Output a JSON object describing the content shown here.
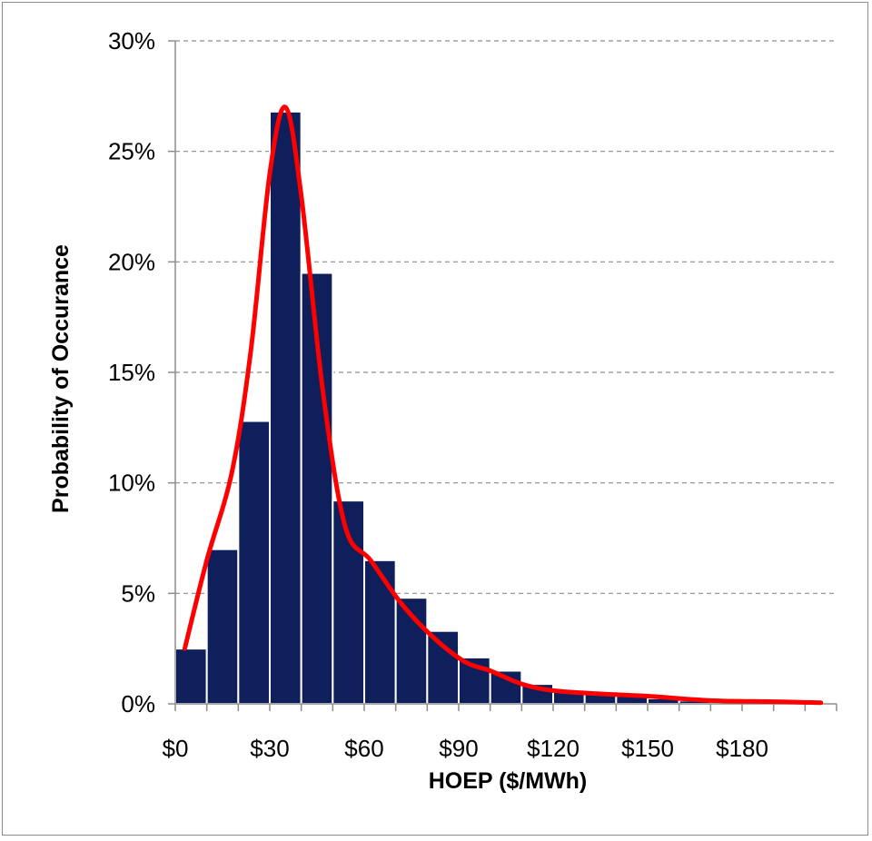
{
  "chart_data": {
    "type": "bar",
    "xlabel": "HOEP ($/MWh)",
    "ylabel": "Probability of Occurance",
    "ylim": [
      0,
      30
    ],
    "xlim": [
      0,
      210
    ],
    "grid": true,
    "bin_width": 10,
    "bins": [
      {
        "x": 5,
        "value": 2.5
      },
      {
        "x": 15,
        "value": 7.0
      },
      {
        "x": 25,
        "value": 12.8
      },
      {
        "x": 35,
        "value": 26.8
      },
      {
        "x": 45,
        "value": 19.5
      },
      {
        "x": 55,
        "value": 9.2
      },
      {
        "x": 65,
        "value": 6.5
      },
      {
        "x": 75,
        "value": 4.8
      },
      {
        "x": 85,
        "value": 3.3
      },
      {
        "x": 95,
        "value": 2.1
      },
      {
        "x": 105,
        "value": 1.5
      },
      {
        "x": 115,
        "value": 0.9
      },
      {
        "x": 125,
        "value": 0.6
      },
      {
        "x": 135,
        "value": 0.45
      },
      {
        "x": 145,
        "value": 0.35
      },
      {
        "x": 155,
        "value": 0.25
      },
      {
        "x": 165,
        "value": 0.15
      },
      {
        "x": 175,
        "value": 0.1
      },
      {
        "x": 185,
        "value": 0.08
      },
      {
        "x": 195,
        "value": 0.05
      },
      {
        "x": 205,
        "value": 0.03
      }
    ],
    "fit_curve": {
      "color": "#ff0000",
      "points": [
        [
          3,
          2.5
        ],
        [
          10,
          6.5
        ],
        [
          18,
          10.5
        ],
        [
          24,
          16
        ],
        [
          30,
          24
        ],
        [
          35,
          27
        ],
        [
          40,
          23
        ],
        [
          47,
          14
        ],
        [
          54,
          8
        ],
        [
          62,
          6.5
        ],
        [
          72,
          4.5
        ],
        [
          82,
          3.0
        ],
        [
          92,
          1.9
        ],
        [
          100,
          1.5
        ],
        [
          110,
          0.9
        ],
        [
          120,
          0.6
        ],
        [
          135,
          0.45
        ],
        [
          150,
          0.35
        ],
        [
          170,
          0.15
        ],
        [
          190,
          0.1
        ],
        [
          205,
          0.05
        ]
      ]
    },
    "bar_color": "#0e1f5b",
    "yticks": [
      "0%",
      "5%",
      "10%",
      "15%",
      "20%",
      "25%",
      "30%"
    ],
    "xticks": [
      {
        "value": 0,
        "label": "$0"
      },
      {
        "value": 30,
        "label": "$30"
      },
      {
        "value": 60,
        "label": "$60"
      },
      {
        "value": 90,
        "label": "$90"
      },
      {
        "value": 120,
        "label": "$120"
      },
      {
        "value": 150,
        "label": "$150"
      },
      {
        "value": 180,
        "label": "$180"
      }
    ]
  }
}
